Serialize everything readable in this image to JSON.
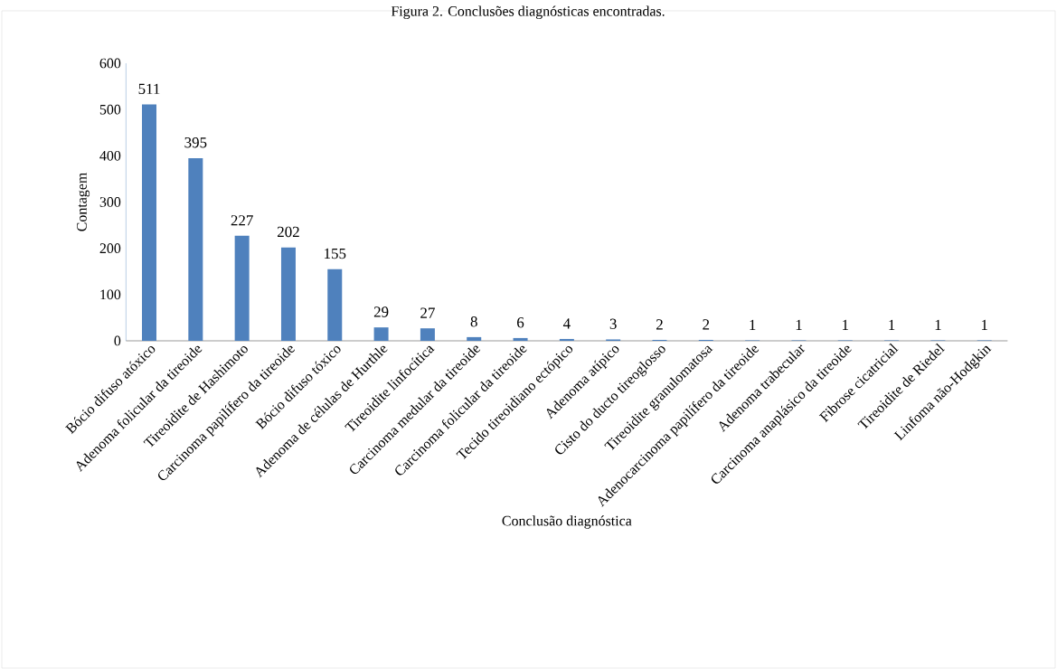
{
  "chart_data": {
    "type": "bar",
    "title": "Figura 2. Conclusões diagnósticas encontradas.",
    "xlabel": "Conclusão diagnóstica",
    "ylabel": "Contagem",
    "categories": [
      "Bócio difuso atóxico",
      "Adenoma folicular da tireoide",
      "Tireoidite de Hashimoto",
      "Carcinoma papilífero da tireoide",
      "Bócio difuso tóxico",
      "Adenoma de células de Hurthle",
      "Tireoidite linfocítica",
      "Carcinoma medular da tireoide",
      "Carcinoma folicular da tireoide",
      "Tecido tireoidiano ectópico",
      "Adenoma atípico",
      "Cisto do ducto tireoglosso",
      "Tireoidite granulomatosa",
      "Adenocarcinoma papilífero da tireoide",
      "Adenoma trabecular",
      "Carcinoma anaplásico da tireoide",
      "Fibrose cicatricial",
      "Tireoidite de Riedel",
      "Linfoma não-Hodgkin"
    ],
    "values": [
      511,
      395,
      227,
      202,
      155,
      29,
      27,
      8,
      6,
      4,
      3,
      2,
      2,
      1,
      1,
      1,
      1,
      1,
      1
    ],
    "color": "#4f81bd",
    "ylim": [
      0,
      600
    ],
    "yticks": [
      0,
      100,
      200,
      300,
      400,
      500,
      600
    ],
    "data_labels": true
  }
}
